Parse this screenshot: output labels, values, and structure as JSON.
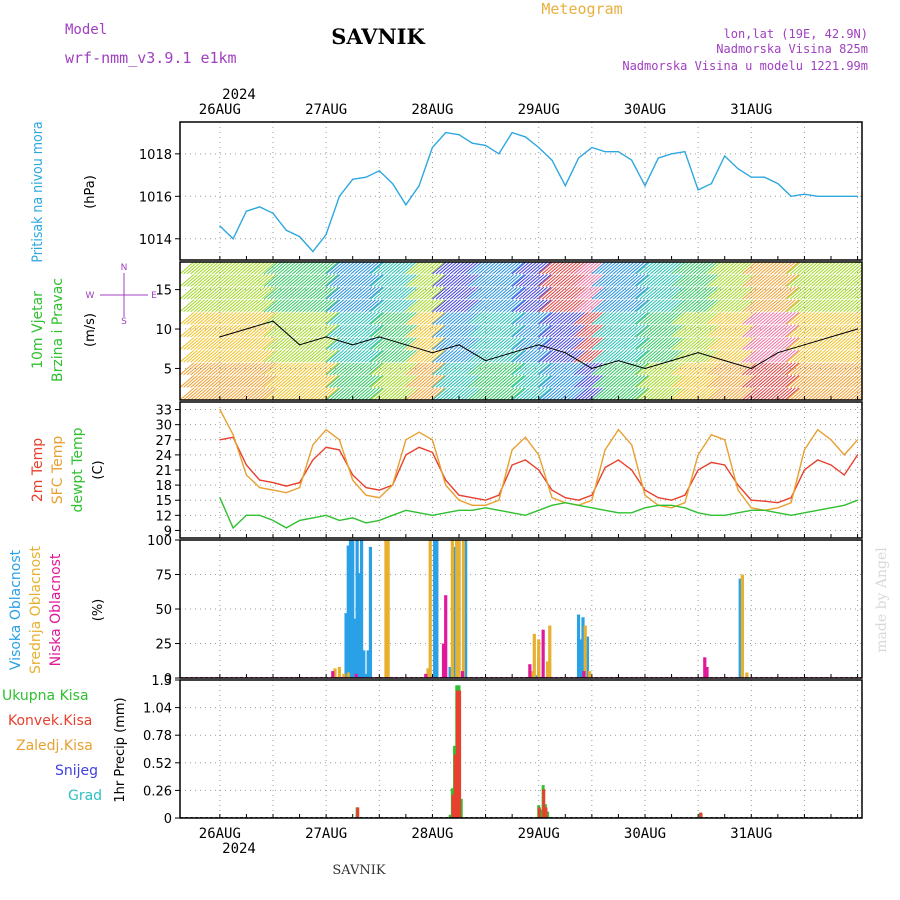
{
  "header": {
    "model_label": "Model",
    "model_name": "wrf-nmm_v3.9.1 e1km",
    "station": "SAVNIK",
    "product": "Meteogram",
    "lonlat": "lon,lat (19E, 42.9N)",
    "elevation": "Nadmorska Visina 825m",
    "model_elevation": "Nadmorska Visina u modelu 1221.99m",
    "footer_station": "SAVNIK",
    "credit": "made by Angel"
  },
  "chart_data": [
    {
      "type": "line",
      "panel": "pressure",
      "ylabel_title": "Pritisak na nivou mora",
      "ylabel_unit": "(hPa)",
      "ticks": [
        1014,
        1016,
        1018
      ],
      "ylim": [
        1013,
        1019.5
      ],
      "grid": true,
      "series": [
        {
          "name": "",
          "color": "#2fa8e0",
          "x": [
            0,
            3,
            6,
            9,
            12,
            15,
            18,
            21,
            24,
            27,
            30,
            33,
            36,
            39,
            42,
            45,
            48,
            51,
            54,
            57,
            60,
            63,
            66,
            69,
            72,
            75,
            78,
            81,
            84,
            87,
            90,
            93,
            96,
            99,
            102,
            105,
            108,
            111,
            114,
            117,
            120,
            123,
            126,
            129,
            132,
            135,
            138,
            141,
            144
          ],
          "values": [
            1014.6,
            1014.0,
            1015.3,
            1015.5,
            1015.2,
            1014.4,
            1014.1,
            1013.4,
            1014.2,
            1016.0,
            1016.8,
            1016.9,
            1017.2,
            1016.6,
            1015.6,
            1016.5,
            1018.3,
            1019.0,
            1018.9,
            1018.5,
            1018.4,
            1018.0,
            1019.0,
            1018.8,
            1018.3,
            1017.7,
            1016.5,
            1017.8,
            1018.3,
            1018.1,
            1018.1,
            1017.7,
            1016.5,
            1017.8,
            1018.0,
            1018.1,
            1016.3,
            1016.6,
            1017.9,
            1017.3,
            1016.9,
            1016.9,
            1016.6,
            1016.0,
            1016.1,
            1016.0,
            1016.0,
            1016.0,
            1016.0
          ]
        }
      ]
    },
    {
      "type": "barbs",
      "panel": "wind",
      "ylabel_title": "10m Vjetar",
      "ylabel_subtitle": "Brzina i Pravac",
      "ylabel_unit": "(m/s)",
      "compass": {
        "north": "N",
        "south": "S",
        "west": "W",
        "east": "E"
      },
      "ticks": [
        5,
        10,
        15
      ],
      "ylim": [
        1,
        18.5
      ],
      "grid": true,
      "series": [
        {
          "name": "",
          "color": "#000000",
          "x": [
            0,
            6,
            12,
            18,
            24,
            30,
            36,
            42,
            48,
            54,
            60,
            66,
            72,
            78,
            84,
            90,
            96,
            102,
            108,
            114,
            120,
            126,
            132,
            138,
            144
          ],
          "values": [
            9,
            10,
            11,
            8,
            9,
            8,
            9,
            8,
            7,
            8,
            6,
            7,
            8,
            7,
            5,
            6,
            5,
            6,
            7,
            6,
            5,
            7,
            8,
            9,
            10
          ]
        }
      ]
    },
    {
      "type": "line",
      "panel": "temperature",
      "ylabel_series": [
        "2m Temp",
        "SFC Temp",
        "dewpt Temp"
      ],
      "ylabel_unit": "(C)",
      "ticks": [
        9,
        12,
        15,
        18,
        21,
        24,
        27,
        30,
        33
      ],
      "ylim": [
        7.5,
        34.5
      ],
      "grid": true,
      "series": [
        {
          "name": "2m Temp",
          "color": "#e8402e",
          "x": [
            0,
            3,
            6,
            9,
            12,
            15,
            18,
            21,
            24,
            27,
            30,
            33,
            36,
            39,
            42,
            45,
            48,
            51,
            54,
            57,
            60,
            63,
            66,
            69,
            72,
            75,
            78,
            81,
            84,
            87,
            90,
            93,
            96,
            99,
            102,
            105,
            108,
            111,
            114,
            117,
            120,
            123,
            126,
            129,
            132,
            135,
            138,
            141,
            144
          ],
          "values": [
            27,
            27.5,
            22,
            19,
            18.5,
            17.8,
            18.5,
            23,
            25.5,
            25,
            20,
            17.5,
            17,
            18,
            24,
            25.5,
            24.5,
            19,
            16,
            15.5,
            15,
            16,
            22,
            23,
            21,
            17,
            15.5,
            15,
            16,
            21.5,
            23,
            21,
            17,
            15.5,
            15,
            16,
            21,
            22.5,
            22,
            18,
            15,
            14.8,
            14.5,
            15.5,
            21,
            23,
            22,
            20,
            24
          ]
        },
        {
          "name": "SFC Temp",
          "color": "#e8a030",
          "x": [
            0,
            3,
            6,
            9,
            12,
            15,
            18,
            21,
            24,
            27,
            30,
            33,
            36,
            39,
            42,
            45,
            48,
            51,
            54,
            57,
            60,
            63,
            66,
            69,
            72,
            75,
            78,
            81,
            84,
            87,
            90,
            93,
            96,
            99,
            102,
            105,
            108,
            111,
            114,
            117,
            120,
            123,
            126,
            129,
            132,
            135,
            138,
            141,
            144
          ],
          "values": [
            33,
            28,
            20,
            17.5,
            17,
            16.5,
            17.5,
            26,
            29,
            27,
            19,
            16,
            15.5,
            18,
            27,
            28.5,
            27,
            18,
            15,
            14,
            14,
            15,
            25,
            27.5,
            24,
            15.5,
            14.5,
            14,
            15,
            25,
            29,
            26,
            16,
            14,
            13.5,
            14.5,
            24,
            28,
            27,
            17,
            13.5,
            13,
            13.5,
            14.5,
            25,
            29,
            27,
            24,
            27
          ]
        },
        {
          "name": "dewpt Temp",
          "color": "#30c030",
          "x": [
            0,
            3,
            6,
            9,
            12,
            15,
            18,
            21,
            24,
            27,
            30,
            33,
            36,
            39,
            42,
            45,
            48,
            51,
            54,
            57,
            60,
            63,
            66,
            69,
            72,
            75,
            78,
            81,
            84,
            87,
            90,
            93,
            96,
            99,
            102,
            105,
            108,
            111,
            114,
            117,
            120,
            123,
            126,
            129,
            132,
            135,
            138,
            141,
            144
          ],
          "values": [
            15.5,
            9.5,
            12,
            12,
            11,
            9.5,
            11,
            11.5,
            12,
            11,
            11.5,
            10.5,
            11,
            12,
            13,
            12.5,
            12,
            12.5,
            13,
            13,
            13.5,
            13,
            12.5,
            12,
            13,
            14,
            14.5,
            14,
            13.5,
            13,
            12.5,
            12.5,
            13.5,
            14,
            14,
            13.5,
            12.5,
            12,
            12,
            12.5,
            13,
            13,
            12.5,
            12,
            12.5,
            13,
            13.5,
            14,
            15
          ]
        }
      ]
    },
    {
      "type": "bar",
      "panel": "cloud",
      "ylabel_series": [
        "Visoka Oblacnost",
        "Srednja Oblacnost",
        "Niska Oblacnost"
      ],
      "ylabel_unit": "(%)",
      "ticks": [
        0,
        25,
        50,
        75,
        100
      ],
      "ylim": [
        0,
        100
      ],
      "grid": true,
      "series": [
        {
          "name": "Visoka Oblacnost",
          "color": "#2aa0e6",
          "x": [
            28.5,
            29,
            29.5,
            30,
            30.5,
            31,
            31.5,
            32,
            32.5,
            33,
            33.5,
            34,
            48.5,
            49,
            52,
            53,
            53.5,
            54,
            55.5,
            71.5,
            72,
            81,
            81.5,
            82,
            82.5,
            83,
            117.5
          ],
          "values": [
            47,
            96,
            100,
            100,
            43,
            100,
            76,
            100,
            20,
            3,
            20,
            95,
            100,
            100,
            8,
            95,
            100,
            100,
            100,
            2,
            15,
            46,
            28,
            44,
            1,
            30,
            72
          ]
        },
        {
          "name": "Srednja Oblacnost",
          "color": "#e8b030",
          "x": [
            26,
            27,
            28,
            29,
            37.5,
            38,
            47,
            47.5,
            52.5,
            53.5,
            54,
            55,
            70.5,
            71,
            72,
            74,
            74.5,
            82.5,
            83.5,
            118,
            119
          ],
          "values": [
            7,
            8,
            3,
            4,
            100,
            100,
            7,
            100,
            100,
            100,
            100,
            100,
            5,
            32,
            28,
            12,
            38,
            38,
            5,
            75,
            4
          ]
        },
        {
          "name": "Niska Oblacnost",
          "color": "#e0189a",
          "x": [
            25.5,
            30.8,
            46.5,
            50.5,
            51,
            54.8,
            70,
            73,
            82.2,
            109.5,
            110
          ],
          "values": [
            5,
            3,
            3,
            25,
            60,
            5,
            10,
            35,
            5,
            15,
            8
          ]
        }
      ]
    },
    {
      "type": "bar",
      "panel": "precip",
      "ylabel_series": [
        "Ukupna Kisa",
        "Konvek.Kisa",
        "Zaledj.Kisa",
        "Snijeg",
        "Grad"
      ],
      "ylabel_unit": "1hr Precip (mm)",
      "ticks": [
        0,
        0.26,
        0.52,
        0.78,
        1.04,
        1.3
      ],
      "ylim": [
        0,
        1.3
      ],
      "grid": true,
      "series": [
        {
          "name": "Ukupna Kisa",
          "color": "#30c030",
          "x": [
            31,
            52,
            52.5,
            53,
            53.5,
            54,
            54.5,
            72,
            72.5,
            73,
            73.5,
            74,
            74.5,
            108.5
          ],
          "values": [
            0.1,
            0.03,
            0.28,
            0.68,
            1.25,
            1.25,
            0.18,
            0.12,
            0.08,
            0.31,
            0.13,
            0.06,
            0.01,
            0.05
          ]
        },
        {
          "name": "Konvek.Kisa",
          "color": "#e8402e",
          "x": [
            31,
            52.5,
            53,
            53.5,
            54,
            72,
            73,
            73.5,
            108.5
          ],
          "values": [
            0.1,
            0.22,
            0.6,
            1.2,
            1.2,
            0.1,
            0.27,
            0.1,
            0.05
          ]
        },
        {
          "name": "Zaledj.Kisa",
          "color": "#e8a030",
          "x": [],
          "values": []
        },
        {
          "name": "Snijeg",
          "color": "#4040e0",
          "x": [],
          "values": []
        },
        {
          "name": "Grad",
          "color": "#30c0c0",
          "x": [],
          "values": []
        }
      ]
    }
  ],
  "time_axis": {
    "unit": "hours since 26AUG 00UTC",
    "xlim": [
      -9,
      145
    ],
    "year": "2024",
    "day_labels": [
      {
        "label": "26AUG",
        "x": 0
      },
      {
        "label": "27AUG",
        "x": 24
      },
      {
        "label": "28AUG",
        "x": 48
      },
      {
        "label": "29AUG",
        "x": 72
      },
      {
        "label": "30AUG",
        "x": 96
      },
      {
        "label": "31AUG",
        "x": 120
      }
    ]
  }
}
